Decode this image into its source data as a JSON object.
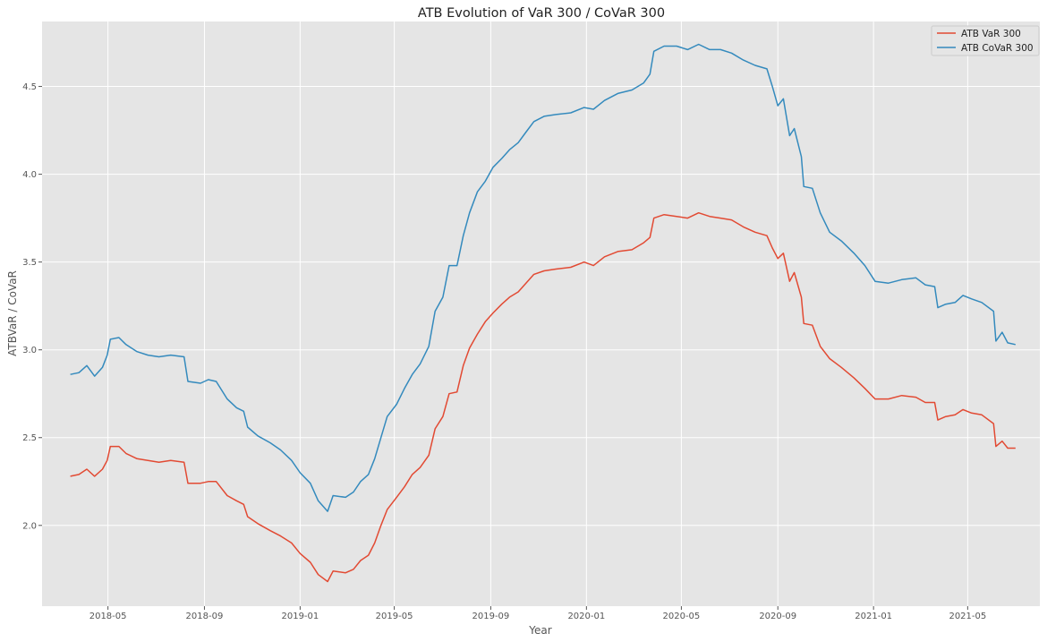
{
  "chart_data": {
    "type": "line",
    "title": "ATB  Evolution of VaR 300 / CoVaR 300",
    "xlabel": "Year",
    "ylabel": "ATBVaR / CoVaR",
    "ylim": [
      1.54,
      4.87
    ],
    "xlim": [
      "2018-02-06",
      "2021-08-01"
    ],
    "grid": true,
    "legend_position": "top-right",
    "x_ticks": [
      "2018-05",
      "2018-09",
      "2019-01",
      "2019-05",
      "2019-09",
      "2020-01",
      "2020-05",
      "2020-09",
      "2021-01",
      "2021-05"
    ],
    "y_ticks": [
      "2.0",
      "2.5",
      "3.0",
      "3.5",
      "4.0",
      "4.5"
    ],
    "series": [
      {
        "name": "ATB  VaR 300",
        "color": "#e24a33",
        "points": [
          [
            "2018-03-14",
            2.28
          ],
          [
            "2018-03-25",
            2.29
          ],
          [
            "2018-04-04",
            2.32
          ],
          [
            "2018-04-14",
            2.28
          ],
          [
            "2018-04-24",
            2.32
          ],
          [
            "2018-04-30",
            2.37
          ],
          [
            "2018-05-04",
            2.45
          ],
          [
            "2018-05-15",
            2.45
          ],
          [
            "2018-05-24",
            2.41
          ],
          [
            "2018-06-07",
            2.38
          ],
          [
            "2018-06-21",
            2.37
          ],
          [
            "2018-07-05",
            2.36
          ],
          [
            "2018-07-20",
            2.37
          ],
          [
            "2018-08-06",
            2.36
          ],
          [
            "2018-08-11",
            2.24
          ],
          [
            "2018-08-27",
            2.24
          ],
          [
            "2018-09-06",
            2.25
          ],
          [
            "2018-09-16",
            2.25
          ],
          [
            "2018-09-30",
            2.17
          ],
          [
            "2018-10-12",
            2.14
          ],
          [
            "2018-10-21",
            2.12
          ],
          [
            "2018-10-26",
            2.05
          ],
          [
            "2018-11-08",
            2.01
          ],
          [
            "2018-11-24",
            1.97
          ],
          [
            "2018-12-07",
            1.94
          ],
          [
            "2018-12-21",
            1.9
          ],
          [
            "2019-01-01",
            1.84
          ],
          [
            "2019-01-14",
            1.79
          ],
          [
            "2019-01-24",
            1.72
          ],
          [
            "2019-02-05",
            1.68
          ],
          [
            "2019-02-12",
            1.74
          ],
          [
            "2019-02-28",
            1.73
          ],
          [
            "2019-03-10",
            1.75
          ],
          [
            "2019-03-19",
            1.8
          ],
          [
            "2019-03-29",
            1.83
          ],
          [
            "2019-04-06",
            1.9
          ],
          [
            "2019-04-14",
            2.0
          ],
          [
            "2019-04-22",
            2.09
          ],
          [
            "2019-05-04",
            2.16
          ],
          [
            "2019-05-14",
            2.22
          ],
          [
            "2019-05-24",
            2.29
          ],
          [
            "2019-06-03",
            2.33
          ],
          [
            "2019-06-14",
            2.4
          ],
          [
            "2019-06-22",
            2.55
          ],
          [
            "2019-07-02",
            2.62
          ],
          [
            "2019-07-10",
            2.75
          ],
          [
            "2019-07-20",
            2.76
          ],
          [
            "2019-07-28",
            2.91
          ],
          [
            "2019-08-05",
            3.01
          ],
          [
            "2019-08-15",
            3.09
          ],
          [
            "2019-08-25",
            3.16
          ],
          [
            "2019-09-04",
            3.21
          ],
          [
            "2019-09-15",
            3.26
          ],
          [
            "2019-09-25",
            3.3
          ],
          [
            "2019-10-06",
            3.33
          ],
          [
            "2019-10-16",
            3.38
          ],
          [
            "2019-10-26",
            3.43
          ],
          [
            "2019-11-08",
            3.45
          ],
          [
            "2019-11-23",
            3.46
          ],
          [
            "2019-12-12",
            3.47
          ],
          [
            "2019-12-29",
            3.5
          ],
          [
            "2020-01-10",
            3.48
          ],
          [
            "2020-01-24",
            3.53
          ],
          [
            "2020-02-10",
            3.56
          ],
          [
            "2020-02-28",
            3.57
          ],
          [
            "2020-03-14",
            3.61
          ],
          [
            "2020-03-22",
            3.64
          ],
          [
            "2020-03-27",
            3.75
          ],
          [
            "2020-04-09",
            3.77
          ],
          [
            "2020-04-25",
            3.76
          ],
          [
            "2020-05-09",
            3.75
          ],
          [
            "2020-05-23",
            3.78
          ],
          [
            "2020-06-06",
            3.76
          ],
          [
            "2020-06-20",
            3.75
          ],
          [
            "2020-07-04",
            3.74
          ],
          [
            "2020-07-19",
            3.7
          ],
          [
            "2020-08-03",
            3.67
          ],
          [
            "2020-08-18",
            3.65
          ],
          [
            "2020-08-25",
            3.58
          ],
          [
            "2020-09-01",
            3.52
          ],
          [
            "2020-09-08",
            3.55
          ],
          [
            "2020-09-16",
            3.39
          ],
          [
            "2020-09-22",
            3.44
          ],
          [
            "2020-10-01",
            3.3
          ],
          [
            "2020-10-04",
            3.15
          ],
          [
            "2020-10-15",
            3.14
          ],
          [
            "2020-10-25",
            3.02
          ],
          [
            "2020-11-06",
            2.95
          ],
          [
            "2020-11-21",
            2.9
          ],
          [
            "2020-12-07",
            2.84
          ],
          [
            "2020-12-21",
            2.78
          ],
          [
            "2021-01-03",
            2.72
          ],
          [
            "2021-01-20",
            2.72
          ],
          [
            "2021-02-06",
            2.74
          ],
          [
            "2021-02-24",
            2.73
          ],
          [
            "2021-03-08",
            2.7
          ],
          [
            "2021-03-20",
            2.7
          ],
          [
            "2021-03-24",
            2.6
          ],
          [
            "2021-04-03",
            2.62
          ],
          [
            "2021-04-15",
            2.63
          ],
          [
            "2021-04-25",
            2.66
          ],
          [
            "2021-05-06",
            2.64
          ],
          [
            "2021-05-19",
            2.63
          ],
          [
            "2021-06-03",
            2.58
          ],
          [
            "2021-06-06",
            2.45
          ],
          [
            "2021-06-14",
            2.48
          ],
          [
            "2021-06-21",
            2.44
          ],
          [
            "2021-07-01",
            2.44
          ]
        ]
      },
      {
        "name": "ATB  CoVaR 300",
        "color": "#348abd",
        "points": [
          [
            "2018-03-14",
            2.86
          ],
          [
            "2018-03-25",
            2.87
          ],
          [
            "2018-04-04",
            2.91
          ],
          [
            "2018-04-14",
            2.85
          ],
          [
            "2018-04-24",
            2.9
          ],
          [
            "2018-04-30",
            2.97
          ],
          [
            "2018-05-04",
            3.06
          ],
          [
            "2018-05-15",
            3.07
          ],
          [
            "2018-05-24",
            3.03
          ],
          [
            "2018-06-07",
            2.99
          ],
          [
            "2018-06-21",
            2.97
          ],
          [
            "2018-07-05",
            2.96
          ],
          [
            "2018-07-20",
            2.97
          ],
          [
            "2018-08-06",
            2.96
          ],
          [
            "2018-08-11",
            2.82
          ],
          [
            "2018-08-27",
            2.81
          ],
          [
            "2018-09-06",
            2.83
          ],
          [
            "2018-09-16",
            2.82
          ],
          [
            "2018-09-30",
            2.72
          ],
          [
            "2018-10-12",
            2.67
          ],
          [
            "2018-10-21",
            2.65
          ],
          [
            "2018-10-26",
            2.56
          ],
          [
            "2018-11-08",
            2.51
          ],
          [
            "2018-11-24",
            2.47
          ],
          [
            "2018-12-07",
            2.43
          ],
          [
            "2018-12-21",
            2.37
          ],
          [
            "2019-01-01",
            2.3
          ],
          [
            "2019-01-14",
            2.24
          ],
          [
            "2019-01-24",
            2.14
          ],
          [
            "2019-02-05",
            2.08
          ],
          [
            "2019-02-12",
            2.17
          ],
          [
            "2019-02-28",
            2.16
          ],
          [
            "2019-03-10",
            2.19
          ],
          [
            "2019-03-19",
            2.25
          ],
          [
            "2019-03-29",
            2.29
          ],
          [
            "2019-04-06",
            2.38
          ],
          [
            "2019-04-14",
            2.5
          ],
          [
            "2019-04-22",
            2.62
          ],
          [
            "2019-05-04",
            2.69
          ],
          [
            "2019-05-14",
            2.78
          ],
          [
            "2019-05-24",
            2.86
          ],
          [
            "2019-06-03",
            2.92
          ],
          [
            "2019-06-14",
            3.02
          ],
          [
            "2019-06-22",
            3.22
          ],
          [
            "2019-07-02",
            3.3
          ],
          [
            "2019-07-10",
            3.48
          ],
          [
            "2019-07-20",
            3.48
          ],
          [
            "2019-07-28",
            3.65
          ],
          [
            "2019-08-05",
            3.78
          ],
          [
            "2019-08-15",
            3.9
          ],
          [
            "2019-08-25",
            3.96
          ],
          [
            "2019-09-04",
            4.04
          ],
          [
            "2019-09-15",
            4.09
          ],
          [
            "2019-09-25",
            4.14
          ],
          [
            "2019-10-06",
            4.18
          ],
          [
            "2019-10-16",
            4.24
          ],
          [
            "2019-10-26",
            4.3
          ],
          [
            "2019-11-08",
            4.33
          ],
          [
            "2019-11-23",
            4.34
          ],
          [
            "2019-12-12",
            4.35
          ],
          [
            "2019-12-29",
            4.38
          ],
          [
            "2020-01-10",
            4.37
          ],
          [
            "2020-01-24",
            4.42
          ],
          [
            "2020-02-10",
            4.46
          ],
          [
            "2020-02-28",
            4.48
          ],
          [
            "2020-03-14",
            4.52
          ],
          [
            "2020-03-22",
            4.57
          ],
          [
            "2020-03-27",
            4.7
          ],
          [
            "2020-04-09",
            4.73
          ],
          [
            "2020-04-25",
            4.73
          ],
          [
            "2020-05-09",
            4.71
          ],
          [
            "2020-05-23",
            4.74
          ],
          [
            "2020-06-06",
            4.71
          ],
          [
            "2020-06-20",
            4.71
          ],
          [
            "2020-07-04",
            4.69
          ],
          [
            "2020-07-19",
            4.65
          ],
          [
            "2020-08-03",
            4.62
          ],
          [
            "2020-08-18",
            4.6
          ],
          [
            "2020-08-25",
            4.5
          ],
          [
            "2020-09-01",
            4.39
          ],
          [
            "2020-09-08",
            4.43
          ],
          [
            "2020-09-16",
            4.22
          ],
          [
            "2020-09-22",
            4.26
          ],
          [
            "2020-10-01",
            4.1
          ],
          [
            "2020-10-04",
            3.93
          ],
          [
            "2020-10-15",
            3.92
          ],
          [
            "2020-10-25",
            3.78
          ],
          [
            "2020-11-06",
            3.67
          ],
          [
            "2020-11-21",
            3.62
          ],
          [
            "2020-12-07",
            3.55
          ],
          [
            "2020-12-21",
            3.48
          ],
          [
            "2021-01-03",
            3.39
          ],
          [
            "2021-01-20",
            3.38
          ],
          [
            "2021-02-06",
            3.4
          ],
          [
            "2021-02-24",
            3.41
          ],
          [
            "2021-03-08",
            3.37
          ],
          [
            "2021-03-20",
            3.36
          ],
          [
            "2021-03-24",
            3.24
          ],
          [
            "2021-04-03",
            3.26
          ],
          [
            "2021-04-15",
            3.27
          ],
          [
            "2021-04-25",
            3.31
          ],
          [
            "2021-05-06",
            3.29
          ],
          [
            "2021-05-19",
            3.27
          ],
          [
            "2021-06-03",
            3.22
          ],
          [
            "2021-06-06",
            3.05
          ],
          [
            "2021-06-14",
            3.1
          ],
          [
            "2021-06-21",
            3.04
          ],
          [
            "2021-07-01",
            3.03
          ]
        ]
      }
    ]
  },
  "colors": {
    "plot_background": "#e5e5e5",
    "grid": "#ffffff"
  }
}
